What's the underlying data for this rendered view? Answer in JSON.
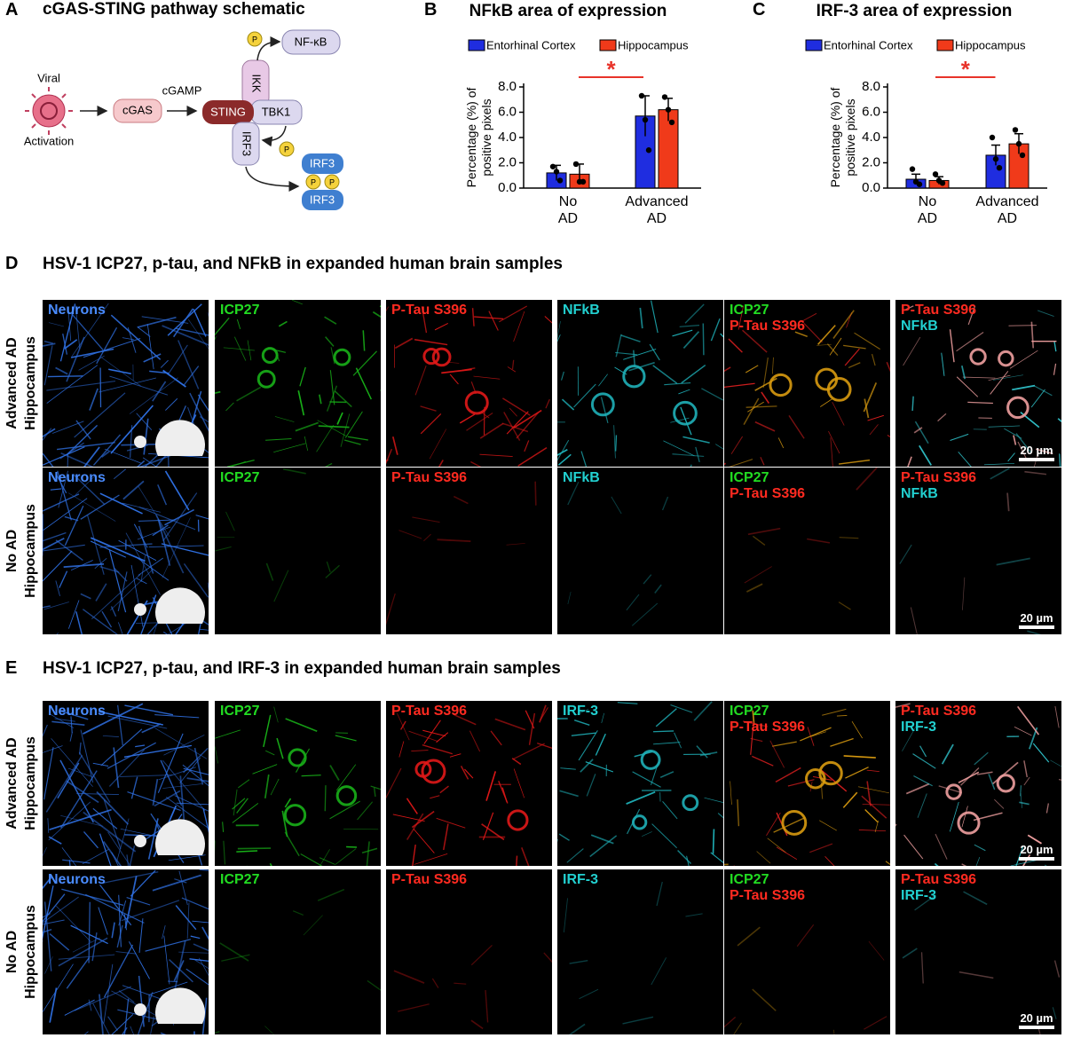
{
  "panel_labels": [
    "A",
    "B",
    "C",
    "D",
    "E"
  ],
  "schematic": {
    "title": "cGAS-STING pathway schematic",
    "viral": "Viral",
    "activation": "Activation",
    "cgas": "cGAS",
    "cgamp": "cGAMP",
    "sting": "STING",
    "tbk1": "TBK1",
    "ikk": "IKK",
    "irf3": "IRF3",
    "nfkb": "NF-κB",
    "phospho": [
      "P",
      "P",
      "P",
      "P"
    ],
    "dimer": [
      "IRF3",
      "IRF3"
    ]
  },
  "chart_data": [
    {
      "type": "bar",
      "title": "NFkB area of expression",
      "y_label": "Percentage (%) of positive pixels",
      "categories": [
        "No AD",
        "Advanced AD"
      ],
      "series": [
        {
          "name": "Entorhinal Cortex",
          "color": "#1f2de0",
          "values": [
            1.2,
            5.7
          ],
          "errors": [
            0.6,
            1.6
          ],
          "points": [
            [
              1.7,
              1.3,
              0.6
            ],
            [
              7.3,
              5.4,
              3.0
            ]
          ]
        },
        {
          "name": "Hippocampus",
          "color": "#f03a1a",
          "values": [
            1.1,
            6.2
          ],
          "errors": [
            0.8,
            0.9
          ],
          "points": [
            [
              1.9,
              0.5,
              0.5
            ],
            [
              7.2,
              6.2,
              5.2
            ]
          ]
        }
      ],
      "ylim": [
        0,
        8
      ],
      "yticks": [
        {
          "value": 0,
          "label": "0.0"
        },
        {
          "value": 2,
          "label": "2.0"
        },
        {
          "value": 4,
          "label": "4.0"
        },
        {
          "value": 6,
          "label": "6.0"
        },
        {
          "value": 8,
          "label": "8.0"
        }
      ],
      "annotations": [
        "*"
      ]
    },
    {
      "type": "bar",
      "title": "IRF-3 area of expression",
      "y_label": "Percentage (%) of positive pixels",
      "categories": [
        "No AD",
        "Advanced AD"
      ],
      "series": [
        {
          "name": "Entorhinal Cortex",
          "color": "#1f2de0",
          "values": [
            0.7,
            2.6
          ],
          "errors": [
            0.4,
            0.8
          ],
          "points": [
            [
              1.5,
              0.5,
              0.3
            ],
            [
              4.0,
              2.3,
              1.6
            ]
          ]
        },
        {
          "name": "Hippocampus",
          "color": "#f03a1a",
          "values": [
            0.6,
            3.5
          ],
          "errors": [
            0.3,
            0.8
          ],
          "points": [
            [
              1.1,
              0.6,
              0.4
            ],
            [
              4.6,
              3.5,
              2.6
            ]
          ]
        }
      ],
      "ylim": [
        0,
        8
      ],
      "yticks": [
        {
          "value": 0,
          "label": "0.0"
        },
        {
          "value": 2,
          "label": "2.0"
        },
        {
          "value": 4,
          "label": "4.0"
        },
        {
          "value": 6,
          "label": "6.0"
        },
        {
          "value": 8,
          "label": "8.0"
        }
      ],
      "annotations": [
        "*"
      ]
    }
  ],
  "panel_d": {
    "title": "HSV-1 ICP27, p-tau, and NFkB in expanded human brain samples",
    "rows": [
      "Advanced AD Hippocampus",
      "No AD Hippocampus"
    ],
    "columns": [
      [
        "Neurons"
      ],
      [
        "ICP27"
      ],
      [
        "P-Tau S396"
      ],
      [
        "NFkB"
      ],
      [
        "ICP27",
        "P-Tau S396"
      ],
      [
        "P-Tau S396",
        "NFkB"
      ]
    ],
    "scale_bar": "20 µm"
  },
  "panel_e": {
    "title": "HSV-1 ICP27, p-tau, and IRF-3 in expanded human brain samples",
    "rows": [
      "Advanced AD Hippocampus",
      "No AD Hippocampus"
    ],
    "columns": [
      [
        "Neurons"
      ],
      [
        "ICP27"
      ],
      [
        "P-Tau S396"
      ],
      [
        "IRF-3"
      ],
      [
        "ICP27",
        "P-Tau S396"
      ],
      [
        "P-Tau S396",
        "IRF-3"
      ]
    ],
    "scale_bar": "20 µm"
  }
}
